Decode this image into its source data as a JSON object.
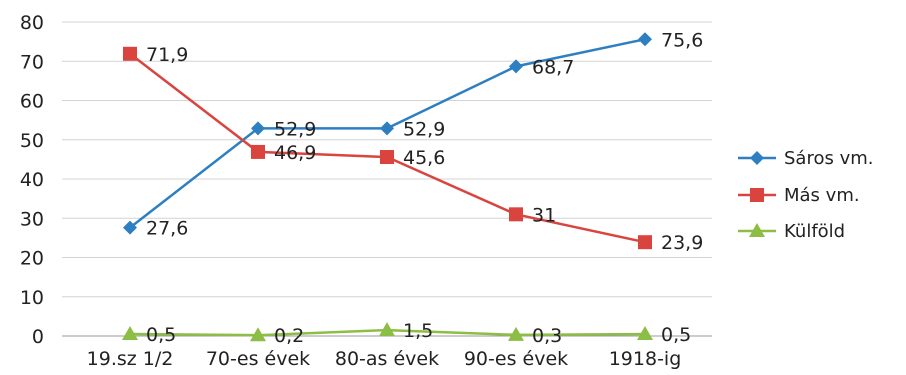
{
  "chart_data": {
    "type": "line",
    "categories": [
      "19.sz 1/2",
      "70-es évek",
      "80-as évek",
      "90-es évek",
      "1918-ig"
    ],
    "ylim": [
      0,
      80
    ],
    "yticks": [
      0,
      10,
      20,
      30,
      40,
      50,
      60,
      70,
      80
    ],
    "grid": true,
    "legend_position": "right",
    "series": [
      {
        "name": "Sáros vm.",
        "color": "#2e7fc2",
        "marker": "diamond",
        "values": [
          27.6,
          52.9,
          52.9,
          68.7,
          75.6
        ],
        "labels": [
          "27,6",
          "52,9",
          "52,9",
          "68,7",
          "75,6"
        ]
      },
      {
        "name": "Más vm.",
        "color": "#d9443f",
        "marker": "square",
        "values": [
          71.9,
          46.9,
          45.6,
          31,
          23.9
        ],
        "labels": [
          "71,9",
          "46,9",
          "45,6",
          "31",
          "23,9"
        ]
      },
      {
        "name": "Külföld",
        "color": "#8cbd45",
        "marker": "triangle",
        "values": [
          0.5,
          0.2,
          1.5,
          0.3,
          0.5
        ],
        "labels": [
          "0,5",
          "0,2",
          "1,5",
          "0,3",
          "0,5"
        ]
      }
    ]
  }
}
